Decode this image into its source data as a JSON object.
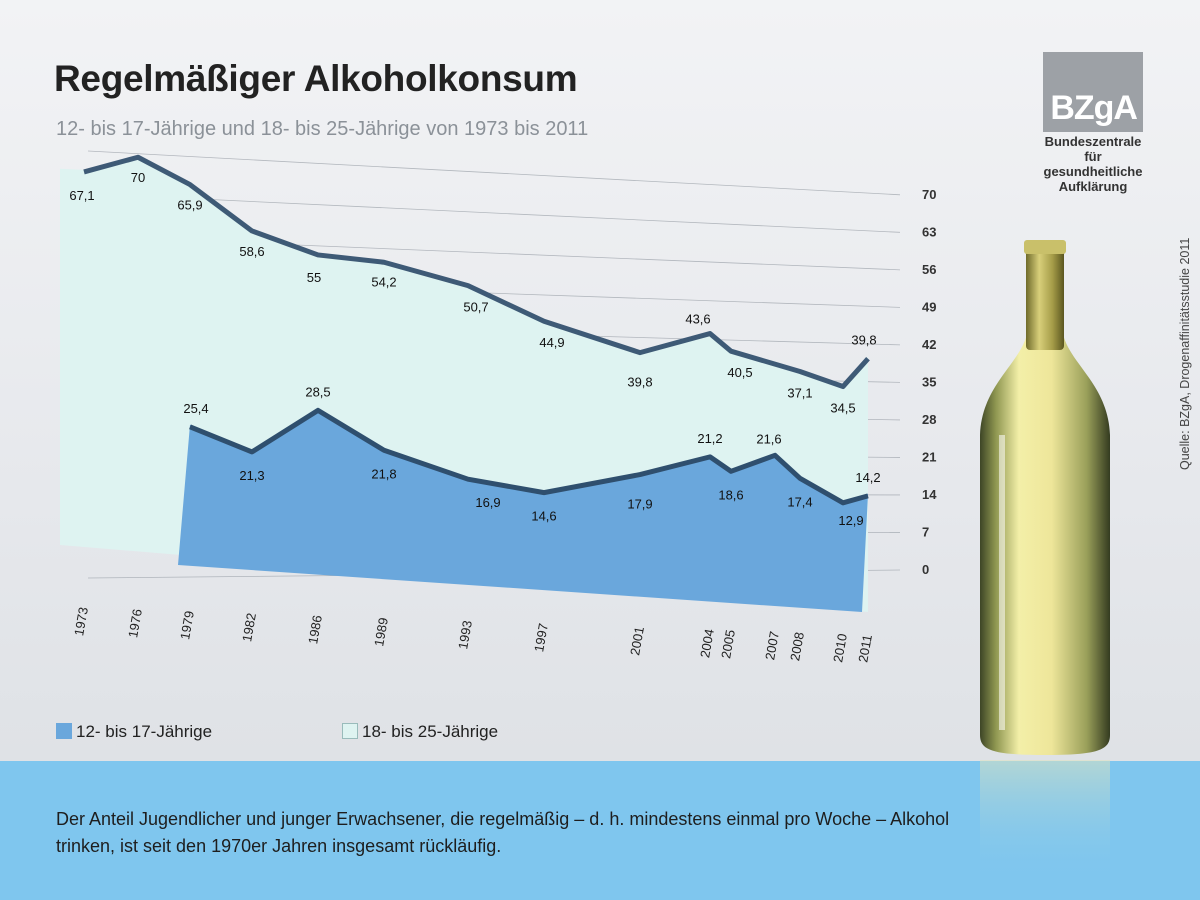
{
  "title": "Regelmäßiger Alkoholkonsum",
  "subtitle": "12- bis 17-Jährige und 18- bis 25-Jährige von 1973 bis 2011",
  "logo": {
    "text": "BZgA",
    "caption_lines": [
      "Bundeszentrale",
      "für",
      "gesundheitliche",
      "Aufklärung"
    ]
  },
  "source": "Quelle: BZgA, Drogenaffinitätsstudie 2011",
  "footer": "Der Anteil Jugendlicher und junger Erwachsener, die regelmäßig – d. h. mindestens einmal pro Woche – Alkohol trinken, ist seit den 1970er Jahren insgesamt rückläufig.",
  "colors": {
    "young": "#6aa7dc",
    "young_edge": "#2f4f6e",
    "adult": "#def3f1",
    "adult_edge": "#3e5a76",
    "band": "#7fc6ee"
  },
  "chart_data": {
    "type": "area",
    "x": [
      "1973",
      "1976",
      "1979",
      "1982",
      "1986",
      "1989",
      "1993",
      "1997",
      "2001",
      "2004",
      "2005",
      "2007",
      "2008",
      "2010",
      "2011"
    ],
    "series": [
      {
        "name": "12- bis 17-Jährige",
        "points": [
          [
            "1979",
            25.4
          ],
          [
            "1982",
            21.3
          ],
          [
            "1986",
            28.5
          ],
          [
            "1989",
            21.8
          ],
          [
            "1993",
            16.9
          ],
          [
            "1997",
            14.6
          ],
          [
            "2001",
            17.9
          ],
          [
            "2004",
            21.2
          ],
          [
            "2005",
            18.6
          ],
          [
            "2007",
            21.6
          ],
          [
            "2008",
            17.4
          ],
          [
            "2010",
            12.9
          ],
          [
            "2011",
            14.2
          ]
        ]
      },
      {
        "name": "18- bis 25-Jährige",
        "points": [
          [
            "1973",
            67.1
          ],
          [
            "1976",
            70.0
          ],
          [
            "1979",
            65.9
          ],
          [
            "1982",
            58.6
          ],
          [
            "1986",
            55.0
          ],
          [
            "1989",
            54.2
          ],
          [
            "1993",
            50.7
          ],
          [
            "1997",
            44.9
          ],
          [
            "2001",
            39.8
          ],
          [
            "2004",
            43.6
          ],
          [
            "2005",
            40.5
          ],
          [
            "2008",
            37.1
          ],
          [
            "2010",
            34.5
          ],
          [
            "2011",
            39.8
          ]
        ]
      }
    ],
    "y_ticks": [
      "70",
      "63",
      "56",
      "49",
      "42",
      "35",
      "28",
      "21",
      "14",
      "7",
      "0"
    ],
    "ylim": [
      0,
      70
    ],
    "legend": [
      "12- bis 17-Jährige",
      "18- bis 25-Jährige"
    ],
    "legend_position": "bottom-left",
    "grid": true
  }
}
